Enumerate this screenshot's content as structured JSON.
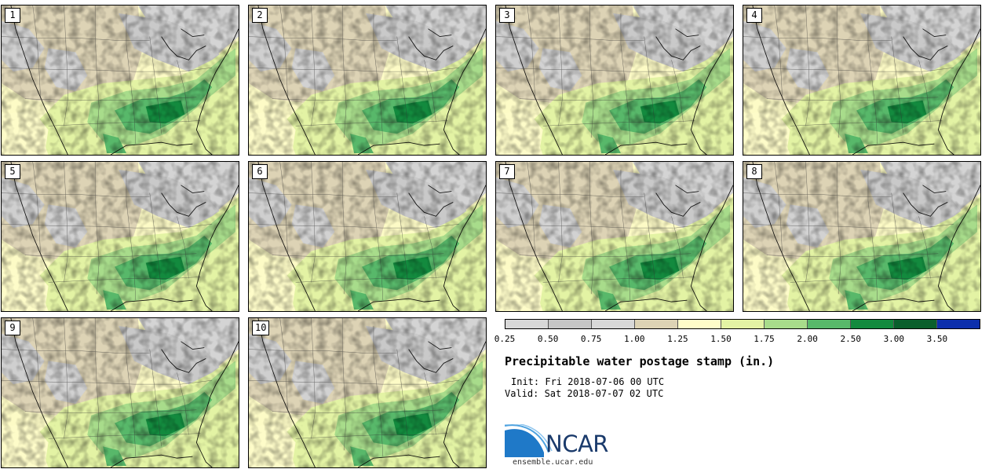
{
  "stamps": [
    {
      "label": "1"
    },
    {
      "label": "2"
    },
    {
      "label": "3"
    },
    {
      "label": "4"
    },
    {
      "label": "5"
    },
    {
      "label": "6"
    },
    {
      "label": "7"
    },
    {
      "label": "8"
    },
    {
      "label": "9"
    },
    {
      "label": "10"
    }
  ],
  "colorbar": {
    "colors": [
      "#d8d8d8",
      "#c6c6c6",
      "#d8d8d8",
      "#ddd3b5",
      "#fefcc9",
      "#e3f3a4",
      "#a8dc8b",
      "#58b86a",
      "#138a3e",
      "#0a5f2c",
      "#0c2fac"
    ],
    "ticks": [
      "0.25",
      "0.50",
      "0.75",
      "1.00",
      "1.25",
      "1.50",
      "1.75",
      "2.00",
      "2.50",
      "3.00",
      "3.50"
    ]
  },
  "title": "Precipitable water postage stamp (in.)",
  "init": "Init: Fri 2018-07-06 00 UTC",
  "valid": "Valid: Sat 2018-07-07 02 UTC",
  "logo": {
    "text": "NCAR",
    "site": "ensemble.ucar.edu"
  }
}
